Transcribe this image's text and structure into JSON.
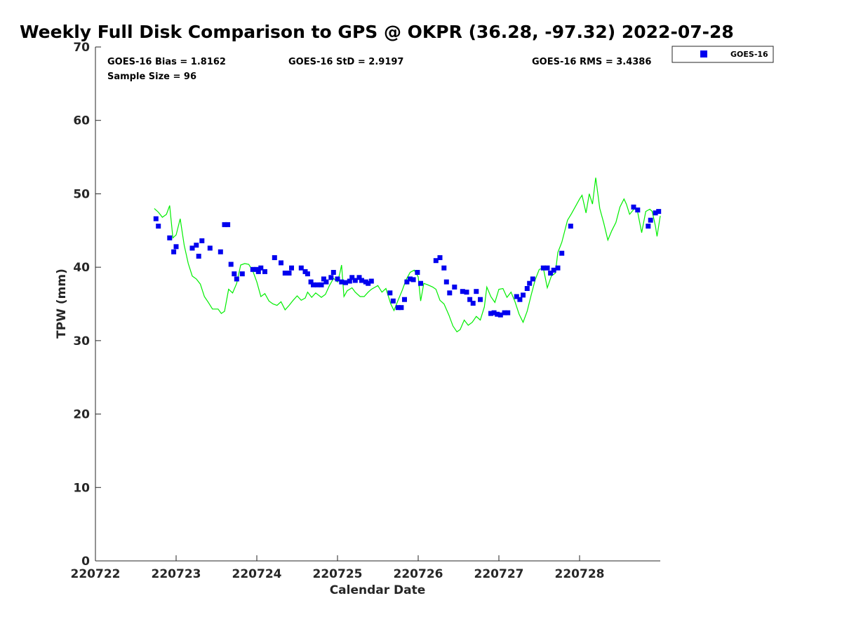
{
  "chart_data": {
    "type": "scatter",
    "title": "Weekly Full Disk Comparison to GPS @ OKPR (36.28, -97.32) 2022-07-28",
    "xlabel": "Calendar Date",
    "ylabel": "TPW (mm)",
    "x_ticks": [
      "220722",
      "220723",
      "220724",
      "220725",
      "220726",
      "220727",
      "220728"
    ],
    "y_ticks": [
      "0",
      "10",
      "20",
      "30",
      "40",
      "50",
      "60",
      "70"
    ],
    "xlim": [
      0,
      7
    ],
    "ylim": [
      0,
      70
    ],
    "grid": false,
    "legend_position": "top-right, outside",
    "stats": {
      "bias": "GOES-16 Bias = 1.8162",
      "std": "GOES-16 StD = 2.9197",
      "rms": "GOES-16 RMS = 3.4386",
      "sample_size": "Sample Size = 96"
    },
    "x_units_note": "x values are days since 220722",
    "colors": {
      "series_goes": "#0000ee",
      "series_gps": "#00ee00"
    },
    "series": [
      {
        "name": "GOES-16",
        "style": "square-markers",
        "color": "#0000ee",
        "points": [
          [
            0.75,
            46.6
          ],
          [
            0.78,
            45.6
          ],
          [
            0.92,
            44.0
          ],
          [
            0.97,
            42.1
          ],
          [
            1.0,
            42.8
          ],
          [
            1.2,
            42.6
          ],
          [
            1.25,
            43.0
          ],
          [
            1.28,
            41.5
          ],
          [
            1.32,
            43.6
          ],
          [
            1.42,
            42.6
          ],
          [
            1.55,
            42.1
          ],
          [
            1.6,
            45.8
          ],
          [
            1.64,
            45.8
          ],
          [
            1.68,
            40.4
          ],
          [
            1.72,
            39.1
          ],
          [
            1.75,
            38.4
          ],
          [
            1.82,
            39.1
          ],
          [
            1.95,
            39.7
          ],
          [
            2.0,
            39.7
          ],
          [
            2.02,
            39.4
          ],
          [
            2.05,
            39.9
          ],
          [
            2.1,
            39.4
          ],
          [
            2.22,
            41.3
          ],
          [
            2.3,
            40.6
          ],
          [
            2.35,
            39.2
          ],
          [
            2.4,
            39.2
          ],
          [
            2.43,
            39.9
          ],
          [
            2.55,
            39.9
          ],
          [
            2.6,
            39.4
          ],
          [
            2.63,
            39.1
          ],
          [
            2.67,
            38.0
          ],
          [
            2.7,
            37.6
          ],
          [
            2.75,
            37.6
          ],
          [
            2.8,
            37.6
          ],
          [
            2.83,
            38.4
          ],
          [
            2.86,
            38.0
          ],
          [
            2.92,
            38.6
          ],
          [
            2.95,
            39.3
          ],
          [
            3.0,
            38.4
          ],
          [
            3.05,
            38.0
          ],
          [
            3.1,
            37.9
          ],
          [
            3.15,
            38.1
          ],
          [
            3.18,
            38.6
          ],
          [
            3.22,
            38.2
          ],
          [
            3.27,
            38.6
          ],
          [
            3.3,
            38.2
          ],
          [
            3.35,
            38.0
          ],
          [
            3.38,
            37.8
          ],
          [
            3.42,
            38.1
          ],
          [
            3.65,
            36.5
          ],
          [
            3.69,
            35.4
          ],
          [
            3.75,
            34.5
          ],
          [
            3.79,
            34.5
          ],
          [
            3.83,
            35.6
          ],
          [
            3.86,
            38.0
          ],
          [
            3.9,
            38.4
          ],
          [
            3.94,
            38.3
          ],
          [
            3.99,
            39.3
          ],
          [
            4.03,
            37.8
          ],
          [
            4.22,
            40.9
          ],
          [
            4.27,
            41.3
          ],
          [
            4.32,
            39.9
          ],
          [
            4.35,
            38.0
          ],
          [
            4.39,
            36.5
          ],
          [
            4.45,
            37.3
          ],
          [
            4.55,
            36.7
          ],
          [
            4.6,
            36.6
          ],
          [
            4.64,
            35.6
          ],
          [
            4.68,
            35.1
          ],
          [
            4.72,
            36.7
          ],
          [
            4.77,
            35.6
          ],
          [
            4.9,
            33.7
          ],
          [
            4.94,
            33.8
          ],
          [
            4.98,
            33.6
          ],
          [
            5.02,
            33.5
          ],
          [
            5.07,
            33.8
          ],
          [
            5.11,
            33.8
          ],
          [
            5.22,
            36.0
          ],
          [
            5.26,
            35.6
          ],
          [
            5.3,
            36.2
          ],
          [
            5.35,
            37.1
          ],
          [
            5.38,
            37.8
          ],
          [
            5.42,
            38.4
          ],
          [
            5.55,
            39.9
          ],
          [
            5.6,
            39.9
          ],
          [
            5.64,
            39.2
          ],
          [
            5.68,
            39.6
          ],
          [
            5.73,
            39.9
          ],
          [
            5.78,
            41.9
          ],
          [
            5.89,
            45.6
          ],
          [
            6.67,
            48.2
          ],
          [
            6.72,
            47.8
          ],
          [
            6.85,
            45.6
          ],
          [
            6.88,
            46.4
          ],
          [
            6.94,
            47.4
          ],
          [
            6.98,
            47.6
          ]
        ]
      },
      {
        "name": "GPS",
        "style": "line",
        "color": "#00ee00",
        "points": [
          [
            0.73,
            48.0
          ],
          [
            0.78,
            47.5
          ],
          [
            0.83,
            46.8
          ],
          [
            0.88,
            47.2
          ],
          [
            0.92,
            48.4
          ],
          [
            0.96,
            44.0
          ],
          [
            1.0,
            44.4
          ],
          [
            1.05,
            46.6
          ],
          [
            1.1,
            43.0
          ],
          [
            1.15,
            40.5
          ],
          [
            1.2,
            38.8
          ],
          [
            1.25,
            38.4
          ],
          [
            1.3,
            37.7
          ],
          [
            1.35,
            36.0
          ],
          [
            1.4,
            35.2
          ],
          [
            1.45,
            34.3
          ],
          [
            1.52,
            34.3
          ],
          [
            1.56,
            33.7
          ],
          [
            1.6,
            34.0
          ],
          [
            1.65,
            37.0
          ],
          [
            1.7,
            36.5
          ],
          [
            1.75,
            37.8
          ],
          [
            1.8,
            40.3
          ],
          [
            1.85,
            40.5
          ],
          [
            1.9,
            40.4
          ],
          [
            1.95,
            39.5
          ],
          [
            2.0,
            38.0
          ],
          [
            2.05,
            36.0
          ],
          [
            2.1,
            36.4
          ],
          [
            2.15,
            35.4
          ],
          [
            2.2,
            35.0
          ],
          [
            2.25,
            34.8
          ],
          [
            2.3,
            35.3
          ],
          [
            2.35,
            34.2
          ],
          [
            2.4,
            34.8
          ],
          [
            2.45,
            35.5
          ],
          [
            2.5,
            36.1
          ],
          [
            2.55,
            35.5
          ],
          [
            2.6,
            35.8
          ],
          [
            2.63,
            36.6
          ],
          [
            2.68,
            35.9
          ],
          [
            2.73,
            36.5
          ],
          [
            2.8,
            35.9
          ],
          [
            2.85,
            36.3
          ],
          [
            2.9,
            37.5
          ],
          [
            2.95,
            38.5
          ],
          [
            3.0,
            38.0
          ],
          [
            3.03,
            39.2
          ],
          [
            3.05,
            40.3
          ],
          [
            3.08,
            36.0
          ],
          [
            3.12,
            36.8
          ],
          [
            3.18,
            37.2
          ],
          [
            3.22,
            36.6
          ],
          [
            3.28,
            36.0
          ],
          [
            3.33,
            36.0
          ],
          [
            3.38,
            36.6
          ],
          [
            3.42,
            37.0
          ],
          [
            3.5,
            37.5
          ],
          [
            3.55,
            36.6
          ],
          [
            3.6,
            37.1
          ],
          [
            3.66,
            35.0
          ],
          [
            3.7,
            34.1
          ],
          [
            3.75,
            35.5
          ],
          [
            3.8,
            36.8
          ],
          [
            3.85,
            38.3
          ],
          [
            3.9,
            39.3
          ],
          [
            3.95,
            39.6
          ],
          [
            4.0,
            38.7
          ],
          [
            4.03,
            35.4
          ],
          [
            4.07,
            37.8
          ],
          [
            4.12,
            37.6
          ],
          [
            4.18,
            37.3
          ],
          [
            4.22,
            37.0
          ],
          [
            4.27,
            35.5
          ],
          [
            4.32,
            35.0
          ],
          [
            4.38,
            33.5
          ],
          [
            4.43,
            32.0
          ],
          [
            4.48,
            31.2
          ],
          [
            4.52,
            31.5
          ],
          [
            4.57,
            32.8
          ],
          [
            4.62,
            32.1
          ],
          [
            4.67,
            32.5
          ],
          [
            4.72,
            33.3
          ],
          [
            4.77,
            32.8
          ],
          [
            4.82,
            34.6
          ],
          [
            4.85,
            37.3
          ],
          [
            4.9,
            36.0
          ],
          [
            4.95,
            35.2
          ],
          [
            5.0,
            37.0
          ],
          [
            5.05,
            37.1
          ],
          [
            5.1,
            35.9
          ],
          [
            5.15,
            36.6
          ],
          [
            5.2,
            35.3
          ],
          [
            5.25,
            33.6
          ],
          [
            5.3,
            32.5
          ],
          [
            5.35,
            34.0
          ],
          [
            5.4,
            36.2
          ],
          [
            5.45,
            38.3
          ],
          [
            5.5,
            39.7
          ],
          [
            5.55,
            39.9
          ],
          [
            5.6,
            37.2
          ],
          [
            5.65,
            38.8
          ],
          [
            5.7,
            39.2
          ],
          [
            5.73,
            42.0
          ],
          [
            5.78,
            43.4
          ],
          [
            5.85,
            46.4
          ],
          [
            5.9,
            47.3
          ],
          [
            5.95,
            48.3
          ],
          [
            6.0,
            49.3
          ],
          [
            6.03,
            49.8
          ],
          [
            6.08,
            47.4
          ],
          [
            6.12,
            50.0
          ],
          [
            6.16,
            48.6
          ],
          [
            6.2,
            52.2
          ],
          [
            6.25,
            48.0
          ],
          [
            6.3,
            46.0
          ],
          [
            6.35,
            43.7
          ],
          [
            6.4,
            45.0
          ],
          [
            6.45,
            46.1
          ],
          [
            6.5,
            48.2
          ],
          [
            6.55,
            49.3
          ],
          [
            6.58,
            48.6
          ],
          [
            6.62,
            47.2
          ],
          [
            6.68,
            48.0
          ],
          [
            6.72,
            47.5
          ],
          [
            6.77,
            44.7
          ],
          [
            6.82,
            47.6
          ],
          [
            6.87,
            47.9
          ],
          [
            6.9,
            47.6
          ],
          [
            6.94,
            45.6
          ],
          [
            6.96,
            44.2
          ],
          [
            7.0,
            47.0
          ]
        ]
      }
    ]
  }
}
